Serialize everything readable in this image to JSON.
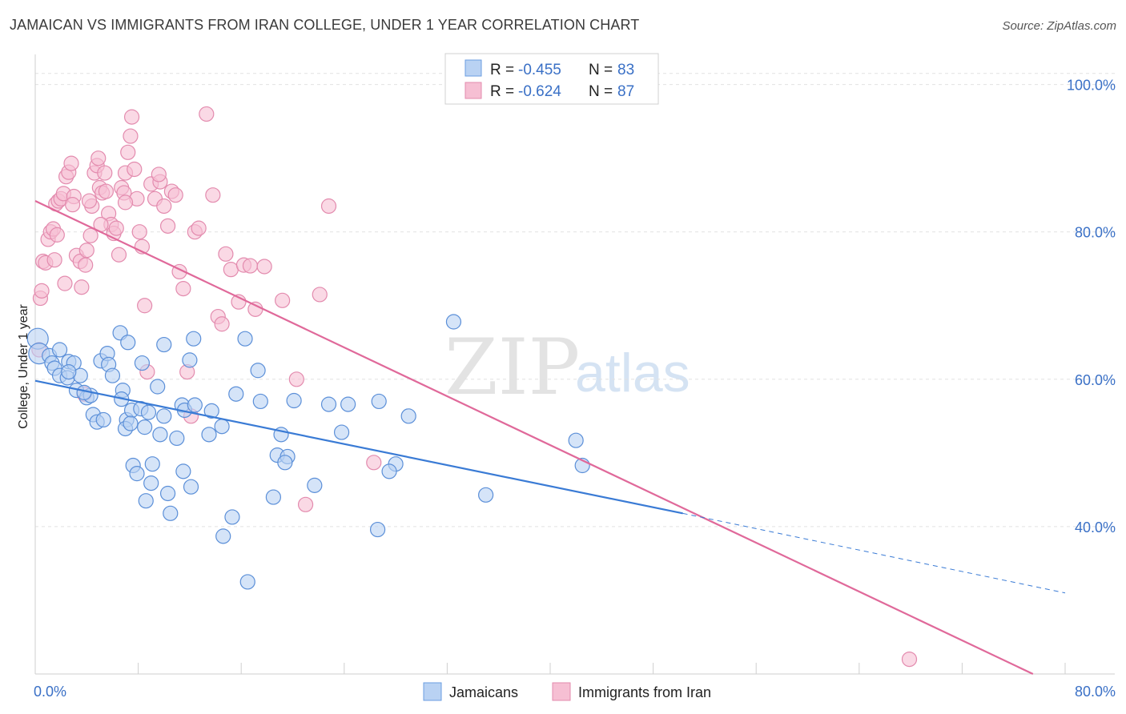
{
  "title": "JAMAICAN VS IMMIGRANTS FROM IRAN COLLEGE, UNDER 1 YEAR CORRELATION CHART",
  "source": "Source: ZipAtlas.com",
  "watermark": {
    "zip": "ZIP",
    "atlas": "atlas"
  },
  "colors": {
    "blue": "#3a7bd5",
    "blue_fill": "#b9d2f3",
    "pink": "#e0699a",
    "pink_fill": "#f6bfd3",
    "axis_text": "#3a70c6"
  },
  "legend": {
    "rows": [
      {
        "r_label": "R = ",
        "r_value": "-0.455",
        "n_label": "N = ",
        "n_value": "83"
      },
      {
        "r_label": "R = ",
        "r_value": "-0.624",
        "n_label": "N = ",
        "n_value": "87"
      }
    ]
  },
  "chart_data": {
    "type": "scatter",
    "title": "JAMAICAN VS IMMIGRANTS FROM IRAN COLLEGE, UNDER 1 YEAR CORRELATION CHART",
    "xlabel": "",
    "ylabel": "College, Under 1 year",
    "xlim": [
      0,
      80
    ],
    "ylim": [
      20,
      103
    ],
    "x_tick_labels": [
      "0.0%",
      "80.0%"
    ],
    "y_ticks": [
      40,
      60,
      80,
      100
    ],
    "y_tick_labels": [
      "40.0%",
      "60.0%",
      "80.0%",
      "100.0%"
    ],
    "grid": "horizontal-dashed",
    "legend_position": "top-center",
    "series": [
      {
        "name": "Jamaicans",
        "r": -0.455,
        "n": 83,
        "trend": {
          "x0": 0,
          "y0": 59.8,
          "x1": 50.3,
          "y1": 41.8,
          "x_dash_end": 80,
          "y_dash_end": 31.0
        },
        "points": [
          [
            0.2,
            65.5
          ],
          [
            0.3,
            63.5
          ],
          [
            1.1,
            63.2
          ],
          [
            1.3,
            62.2
          ],
          [
            1.5,
            61.5
          ],
          [
            1.9,
            60.5
          ],
          [
            2.6,
            62.4
          ],
          [
            3.0,
            62.2
          ],
          [
            2.5,
            60.2
          ],
          [
            3.5,
            60.5
          ],
          [
            3.2,
            58.5
          ],
          [
            4.0,
            57.5
          ],
          [
            4.3,
            57.8
          ],
          [
            4.5,
            55.2
          ],
          [
            4.8,
            54.2
          ],
          [
            5.3,
            54.5
          ],
          [
            5.1,
            62.5
          ],
          [
            5.6,
            63.5
          ],
          [
            5.7,
            62.0
          ],
          [
            6.0,
            60.5
          ],
          [
            6.8,
            58.5
          ],
          [
            6.7,
            57.3
          ],
          [
            7.1,
            54.5
          ],
          [
            7.0,
            53.3
          ],
          [
            7.5,
            55.8
          ],
          [
            7.6,
            48.3
          ],
          [
            7.4,
            54.0
          ],
          [
            7.9,
            47.2
          ],
          [
            8.2,
            56.0
          ],
          [
            8.3,
            62.2
          ],
          [
            8.8,
            55.5
          ],
          [
            8.5,
            53.5
          ],
          [
            8.6,
            43.5
          ],
          [
            9.0,
            45.9
          ],
          [
            9.1,
            48.5
          ],
          [
            9.5,
            59.0
          ],
          [
            9.7,
            52.5
          ],
          [
            10.0,
            55.0
          ],
          [
            10.3,
            44.5
          ],
          [
            10.5,
            41.8
          ],
          [
            11.4,
            56.5
          ],
          [
            11.6,
            55.8
          ],
          [
            11.0,
            52.0
          ],
          [
            11.5,
            47.5
          ],
          [
            12.1,
            45.4
          ],
          [
            12.4,
            56.5
          ],
          [
            12.0,
            62.6
          ],
          [
            13.7,
            55.7
          ],
          [
            13.5,
            52.5
          ],
          [
            14.5,
            53.6
          ],
          [
            14.6,
            38.7
          ],
          [
            15.3,
            41.3
          ],
          [
            15.6,
            58.0
          ],
          [
            16.5,
            32.5
          ],
          [
            17.3,
            61.2
          ],
          [
            17.5,
            57.0
          ],
          [
            18.8,
            49.7
          ],
          [
            19.1,
            52.5
          ],
          [
            19.6,
            49.5
          ],
          [
            19.4,
            48.7
          ],
          [
            18.5,
            44.0
          ],
          [
            20.1,
            57.1
          ],
          [
            21.7,
            45.6
          ],
          [
            22.8,
            56.6
          ],
          [
            23.8,
            52.8
          ],
          [
            24.3,
            56.6
          ],
          [
            26.7,
            57.0
          ],
          [
            26.6,
            39.6
          ],
          [
            28.0,
            48.5
          ],
          [
            27.5,
            47.5
          ],
          [
            29.0,
            55.0
          ],
          [
            32.5,
            67.8
          ],
          [
            35.0,
            44.3
          ],
          [
            42.0,
            51.7
          ],
          [
            42.5,
            48.3
          ],
          [
            10.0,
            64.7
          ],
          [
            12.3,
            65.5
          ],
          [
            16.3,
            65.5
          ],
          [
            6.6,
            66.3
          ],
          [
            7.2,
            65.0
          ],
          [
            1.9,
            64.0
          ],
          [
            2.6,
            61.0
          ],
          [
            3.8,
            58.2
          ]
        ]
      },
      {
        "name": "Immigrants from Iran",
        "r": -0.624,
        "n": 87,
        "trend": {
          "x0": 0,
          "y0": 84.2,
          "x1": 77.5,
          "y1": 20.0
        },
        "points": [
          [
            0.3,
            64.0
          ],
          [
            0.4,
            71.0
          ],
          [
            0.5,
            72.0
          ],
          [
            0.6,
            76.0
          ],
          [
            0.8,
            75.8
          ],
          [
            1.0,
            79.0
          ],
          [
            1.2,
            80.0
          ],
          [
            1.4,
            80.4
          ],
          [
            1.7,
            79.6
          ],
          [
            1.6,
            83.8
          ],
          [
            1.8,
            84.2
          ],
          [
            2.0,
            84.5
          ],
          [
            2.2,
            85.2
          ],
          [
            2.4,
            87.5
          ],
          [
            2.6,
            88.1
          ],
          [
            2.8,
            89.3
          ],
          [
            3.0,
            84.8
          ],
          [
            3.2,
            76.8
          ],
          [
            3.5,
            76.0
          ],
          [
            3.6,
            72.5
          ],
          [
            3.9,
            75.5
          ],
          [
            4.0,
            77.5
          ],
          [
            4.3,
            79.5
          ],
          [
            4.4,
            83.5
          ],
          [
            4.6,
            88.0
          ],
          [
            4.8,
            89.0
          ],
          [
            4.9,
            90.0
          ],
          [
            5.0,
            86.0
          ],
          [
            5.2,
            85.3
          ],
          [
            5.4,
            88.0
          ],
          [
            5.5,
            85.5
          ],
          [
            5.7,
            82.5
          ],
          [
            5.9,
            81.0
          ],
          [
            6.1,
            79.8
          ],
          [
            6.3,
            80.5
          ],
          [
            6.5,
            76.9
          ],
          [
            6.7,
            86.0
          ],
          [
            6.9,
            85.3
          ],
          [
            7.0,
            88.0
          ],
          [
            7.2,
            90.8
          ],
          [
            7.4,
            93.0
          ],
          [
            7.5,
            95.6
          ],
          [
            7.7,
            88.5
          ],
          [
            7.9,
            84.5
          ],
          [
            8.1,
            80.0
          ],
          [
            8.3,
            78.0
          ],
          [
            8.5,
            70.0
          ],
          [
            8.7,
            61.0
          ],
          [
            9.0,
            86.5
          ],
          [
            9.3,
            84.5
          ],
          [
            9.7,
            86.8
          ],
          [
            10.0,
            83.5
          ],
          [
            10.3,
            80.8
          ],
          [
            10.6,
            85.5
          ],
          [
            10.9,
            85.0
          ],
          [
            11.2,
            74.6
          ],
          [
            11.5,
            72.3
          ],
          [
            11.8,
            61.0
          ],
          [
            12.1,
            55.0
          ],
          [
            12.4,
            80.0
          ],
          [
            12.7,
            80.5
          ],
          [
            13.3,
            96.0
          ],
          [
            13.8,
            85.0
          ],
          [
            14.2,
            68.5
          ],
          [
            14.5,
            67.5
          ],
          [
            14.8,
            77.0
          ],
          [
            15.2,
            74.9
          ],
          [
            15.8,
            70.5
          ],
          [
            16.2,
            75.5
          ],
          [
            16.7,
            75.4
          ],
          [
            17.1,
            69.5
          ],
          [
            17.8,
            75.3
          ],
          [
            19.2,
            70.7
          ],
          [
            20.3,
            60.0
          ],
          [
            21.0,
            43.0
          ],
          [
            22.1,
            71.5
          ],
          [
            22.8,
            83.5
          ],
          [
            26.3,
            48.7
          ],
          [
            67.9,
            22.0
          ],
          [
            4.2,
            84.2
          ],
          [
            2.9,
            83.7
          ],
          [
            3.8,
            58.0
          ],
          [
            5.1,
            81.0
          ],
          [
            7.0,
            84.0
          ],
          [
            9.6,
            87.8
          ],
          [
            2.3,
            73.0
          ],
          [
            1.5,
            76.2
          ]
        ]
      }
    ]
  },
  "bottom_legend": [
    {
      "label": "Jamaicans"
    },
    {
      "label": "Immigrants from Iran"
    }
  ]
}
